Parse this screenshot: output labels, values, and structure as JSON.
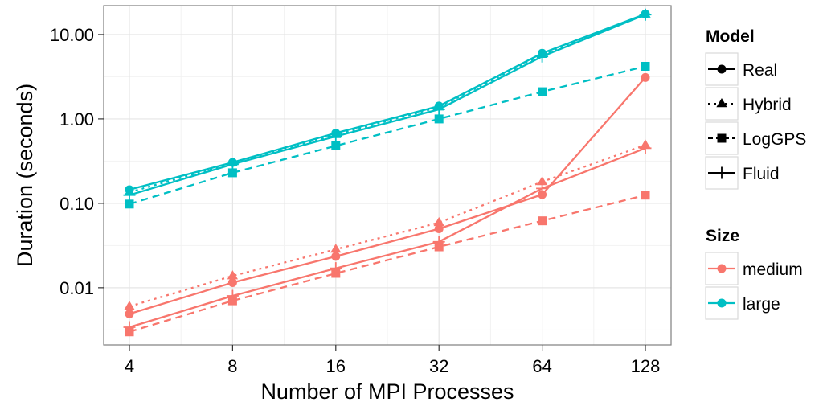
{
  "chart_data": {
    "type": "line",
    "xlabel": "Number of MPI Processes",
    "ylabel": "Duration (seconds)",
    "x_scale": "log2",
    "y_scale": "log10",
    "x": [
      4,
      8,
      16,
      32,
      64,
      128
    ],
    "x_tick_labels": [
      "4",
      "8",
      "16",
      "32",
      "64",
      "128"
    ],
    "y_ticks": [
      0.01,
      0.1,
      1,
      10
    ],
    "y_tick_labels": [
      "0.01",
      "0.10",
      "1.00",
      "10.00"
    ],
    "ylim": [
      0.0021,
      22
    ],
    "grid": true,
    "legend_placement": "right",
    "legends": {
      "model": {
        "title": "Model",
        "items": [
          {
            "label": "Real",
            "marker": "circle",
            "linetype": "solid"
          },
          {
            "label": "Hybrid",
            "marker": "triangle",
            "linetype": "dotted"
          },
          {
            "label": "LogGPS",
            "marker": "square",
            "linetype": "dashed"
          },
          {
            "label": "Fluid",
            "marker": "plus",
            "linetype": "solid"
          }
        ]
      },
      "size": {
        "title": "Size",
        "items": [
          {
            "label": "medium",
            "color": "#F8766D"
          },
          {
            "label": "large",
            "color": "#00BFC4"
          }
        ]
      }
    },
    "series": [
      {
        "model": "Real",
        "size": "medium",
        "values": [
          0.0049,
          0.0115,
          0.0235,
          0.05,
          0.127,
          3.1
        ]
      },
      {
        "model": "Hybrid",
        "size": "medium",
        "values": [
          0.006,
          0.0138,
          0.0285,
          0.059,
          0.18,
          0.49
        ]
      },
      {
        "model": "LogGPS",
        "size": "medium",
        "values": [
          0.003,
          0.007,
          0.0148,
          0.0305,
          0.062,
          0.125
        ]
      },
      {
        "model": "Fluid",
        "size": "medium",
        "values": [
          0.0034,
          0.008,
          0.017,
          0.035,
          0.15,
          0.45
        ]
      },
      {
        "model": "Real",
        "size": "large",
        "values": [
          0.145,
          0.305,
          0.68,
          1.42,
          6.0,
          17.5
        ]
      },
      {
        "model": "Hybrid",
        "size": "large",
        "values": [
          0.135,
          0.3,
          0.65,
          1.38,
          5.8,
          17.4
        ]
      },
      {
        "model": "LogGPS",
        "size": "large",
        "values": [
          0.098,
          0.23,
          0.48,
          1.0,
          2.1,
          4.2
        ]
      },
      {
        "model": "Fluid",
        "size": "large",
        "values": [
          0.125,
          0.29,
          0.62,
          1.3,
          5.5,
          17.2
        ]
      }
    ]
  }
}
